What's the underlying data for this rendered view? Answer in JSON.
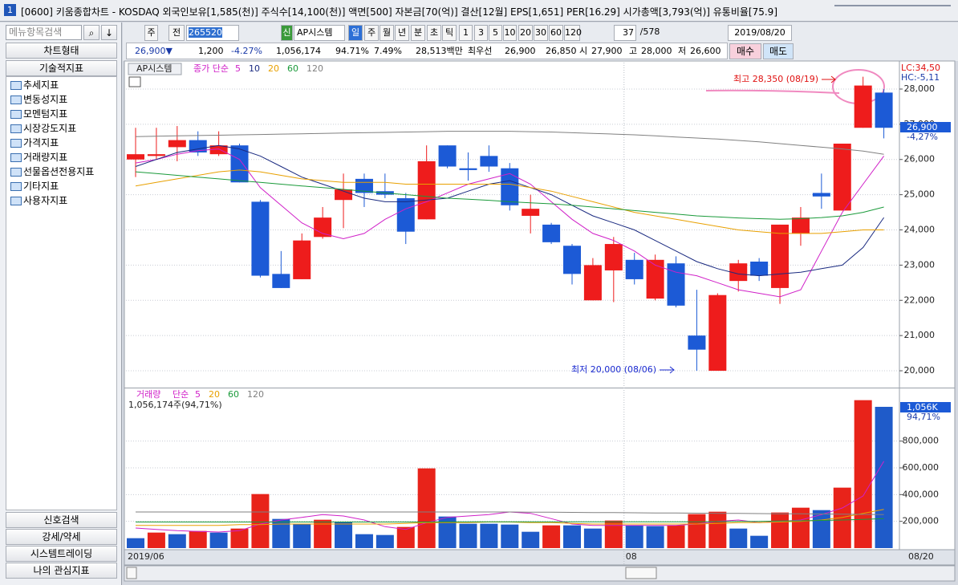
{
  "window": {
    "title": "[0600] 키움종합차트 - KOSDAQ 외국인보유[1,585(천)] 주식수[14,100(천)] 액면[500] 자본금[70(억)] 결산[12월] EPS[1,651] PER[16.29] 시가총액[3,793(억)] 유통비율[75.9]"
  },
  "sidebar": {
    "search": "메뉴항목검색",
    "tabs": [
      "차트형태",
      "기술적지표"
    ],
    "folders": [
      "추세지표",
      "변동성지표",
      "모멘텀지표",
      "시장강도지표",
      "가격지표",
      "거래량지표",
      "선물옵션전용지표",
      "기타지표",
      "사용자지표"
    ],
    "bottom": [
      "신호검색",
      "강세/약세",
      "시스템트레이딩",
      "나의 관심지표"
    ]
  },
  "toolbar": [
    "주",
    "전",
    "265520",
    "신",
    "AP시스템",
    "일",
    "주",
    "월",
    "년",
    "분",
    "초",
    "틱",
    "1",
    "3",
    "5",
    "10",
    "20",
    "30",
    "60",
    "120",
    "37",
    "/578",
    "2019/08/20"
  ],
  "infobar": [
    "26,900▼",
    "1,200",
    "-4.27%",
    "1,056,174",
    "94.71%",
    "7.49%",
    "28,513백만",
    "최우선",
    "26,900",
    "26,850",
    "시",
    "27,900",
    "고",
    "28,000",
    "저",
    "26,600",
    "매수",
    "매도"
  ],
  "chart_data": [
    {
      "type": "candlestick",
      "title": "AP시스템",
      "ma_label": "종가 단순",
      "categories": [
        "2019/06",
        null,
        null,
        null,
        null,
        null,
        null,
        null,
        null,
        null,
        null,
        null,
        null,
        null,
        null,
        null,
        null,
        null,
        null,
        null,
        null,
        null,
        null,
        null,
        "08",
        null,
        null,
        null,
        null,
        null,
        null,
        null,
        null,
        null,
        null,
        null,
        "08/20"
      ],
      "open": [
        26000,
        26100,
        26350,
        26550,
        26150,
        26400,
        24800,
        22750,
        22600,
        23800,
        24850,
        25450,
        25100,
        24900,
        24300,
        26400,
        25750,
        26100,
        25750,
        24400,
        24150,
        23550,
        22000,
        22850,
        23150,
        22050,
        23050,
        21000,
        20000,
        22550,
        23100,
        22350,
        23900,
        25050,
        24550,
        26900,
        27900
      ],
      "high": [
        26900,
        26900,
        26950,
        26800,
        26800,
        26450,
        24850,
        23400,
        23900,
        24650,
        25600,
        25600,
        25600,
        25050,
        26400,
        26400,
        26200,
        26400,
        25900,
        25000,
        24200,
        23600,
        23200,
        23800,
        23350,
        23300,
        23250,
        22300,
        22200,
        23150,
        23200,
        24150,
        24650,
        25600,
        26450,
        28350,
        28000
      ],
      "low": [
        25500,
        26000,
        25950,
        26100,
        26100,
        25350,
        22650,
        22350,
        22600,
        23750,
        24050,
        24650,
        24900,
        23600,
        24300,
        25750,
        25400,
        25650,
        24550,
        23900,
        23600,
        22450,
        22000,
        21950,
        22450,
        22000,
        21800,
        20000,
        20000,
        22250,
        22550,
        21900,
        23550,
        24600,
        24550,
        26900,
        26600
      ],
      "close": [
        26150,
        26150,
        26550,
        26200,
        26400,
        25350,
        22700,
        22350,
        23700,
        24350,
        25150,
        25050,
        25000,
        23950,
        25950,
        25800,
        25700,
        25800,
        24700,
        24600,
        23650,
        22750,
        23000,
        23600,
        22600,
        23150,
        21850,
        20600,
        22150,
        23050,
        22700,
        24150,
        24350,
        24950,
        26450,
        28100,
        26900
      ],
      "up_color": "#ee1c1c",
      "down_color": "#1c5ad6",
      "series": [
        {
          "name": "5",
          "color": "#d020c8",
          "values": [
            25900,
            26000,
            26150,
            26250,
            26300,
            26000,
            25200,
            24700,
            24200,
            23900,
            23750,
            23900,
            24300,
            24600,
            24800,
            25050,
            25300,
            25450,
            25600,
            25300,
            24800,
            24300,
            23900,
            23700,
            23400,
            23000,
            22800,
            22700,
            22500,
            22300,
            22200,
            22100,
            22300,
            23400,
            24500,
            25300,
            26100
          ]
        },
        {
          "name": "10",
          "color": "#1a2a80",
          "values": [
            25800,
            26000,
            26200,
            26300,
            26400,
            26300,
            26100,
            25800,
            25500,
            25300,
            25100,
            24900,
            24800,
            24800,
            24850,
            24900,
            25100,
            25300,
            25400,
            25200,
            25000,
            24700,
            24400,
            24200,
            24000,
            23700,
            23400,
            23100,
            22900,
            22750,
            22700,
            22750,
            22800,
            22900,
            23000,
            23500,
            24350
          ]
        },
        {
          "name": "20",
          "color": "#e8a000",
          "values": [
            25250,
            25350,
            25450,
            25550,
            25650,
            25700,
            25650,
            25550,
            25450,
            25400,
            25350,
            25350,
            25350,
            25300,
            25300,
            25300,
            25300,
            25300,
            25300,
            25200,
            25100,
            24950,
            24800,
            24650,
            24500,
            24400,
            24300,
            24200,
            24100,
            24000,
            23950,
            23900,
            23900,
            23900,
            23950,
            24000,
            24000
          ]
        },
        {
          "name": "60",
          "color": "#1a9a3a",
          "values": [
            25650,
            25600,
            25550,
            25500,
            25450,
            25400,
            25350,
            25300,
            25250,
            25200,
            25150,
            25100,
            25050,
            25000,
            24950,
            24900,
            24870,
            24840,
            24800,
            24770,
            24740,
            24700,
            24650,
            24600,
            24550,
            24500,
            24450,
            24400,
            24370,
            24340,
            24320,
            24300,
            24320,
            24350,
            24400,
            24500,
            24650
          ]
        },
        {
          "name": "120",
          "color": "#808080",
          "values": [
            26650,
            26660,
            26670,
            26680,
            26690,
            26700,
            26710,
            26720,
            26730,
            26740,
            26750,
            26760,
            26770,
            26780,
            26790,
            26800,
            26800,
            26800,
            26800,
            26790,
            26780,
            26760,
            26740,
            26720,
            26700,
            26670,
            26640,
            26610,
            26580,
            26540,
            26500,
            26450,
            26400,
            26350,
            26300,
            26240,
            26150
          ]
        }
      ],
      "ylim": [
        19545,
        28706
      ],
      "yticks": [
        {
          "value": 20000,
          "label": "20,000"
        },
        {
          "value": 21000,
          "label": "21,000"
        },
        {
          "value": 22000,
          "label": "22,000"
        },
        {
          "value": 23000,
          "label": "23,000"
        },
        {
          "value": 24000,
          "label": "24,000"
        },
        {
          "value": 25000,
          "label": "25,000"
        },
        {
          "value": 26000,
          "label": "26,000"
        },
        {
          "value": 27000,
          "label": "27,000"
        },
        {
          "value": 28000,
          "label": "28,000"
        }
      ],
      "grid": true,
      "annotations": [
        "최고 28,350 (08/19)",
        "최저 20,000 (08/06)"
      ],
      "side_labels": [
        "LC:34,50",
        "HC:-5,11",
        "26,900",
        "-4,27%"
      ]
    },
    {
      "type": "bar",
      "title": "거래량",
      "ma_label": "단순",
      "subtitle": "1,056,174주(94,71%)",
      "values": [
        74000,
        116000,
        104000,
        128000,
        116000,
        146000,
        404000,
        218000,
        182000,
        212000,
        194000,
        104000,
        98000,
        158000,
        596000,
        236000,
        182000,
        182000,
        176000,
        122000,
        170000,
        170000,
        146000,
        206000,
        170000,
        164000,
        170000,
        254000,
        272000,
        146000,
        92000,
        266000,
        302000,
        284000,
        452000,
        1106000,
        1056174
      ],
      "up_color": "#e8231a",
      "down_color": "#1f5bc9",
      "series": [
        {
          "name": "5",
          "color": "#d020c8",
          "values": [
            150000,
            140000,
            130000,
            125000,
            120000,
            130000,
            180000,
            210000,
            230000,
            250000,
            240000,
            210000,
            160000,
            140000,
            190000,
            230000,
            240000,
            250000,
            270000,
            260000,
            220000,
            180000,
            170000,
            170000,
            170000,
            170000,
            170000,
            180000,
            200000,
            210000,
            190000,
            200000,
            210000,
            250000,
            300000,
            390000,
            650000
          ]
        },
        {
          "name": "20",
          "color": "#e8a000",
          "values": [
            170000,
            170000,
            170000,
            170000,
            170000,
            175000,
            175000,
            180000,
            180000,
            180000,
            180000,
            180000,
            180000,
            185000,
            190000,
            190000,
            190000,
            195000,
            195000,
            190000,
            190000,
            185000,
            180000,
            180000,
            180000,
            180000,
            180000,
            180000,
            185000,
            190000,
            190000,
            195000,
            200000,
            210000,
            230000,
            260000,
            290000
          ]
        },
        {
          "name": "60",
          "color": "#1a9a3a",
          "values": [
            195000,
            195000,
            195000,
            195000,
            195000,
            195000,
            195000,
            195000,
            195000,
            195000,
            195000,
            195000,
            195000,
            195000,
            195000,
            196000,
            196000,
            196000,
            196000,
            196000,
            196000,
            196000,
            196000,
            196000,
            196000,
            196000,
            196000,
            197000,
            198000,
            199000,
            200000,
            202000,
            204000,
            207000,
            210000,
            215000,
            220000
          ]
        },
        {
          "name": "120",
          "color": "#808080",
          "values": [
            270000,
            270000,
            270000,
            270000,
            270000,
            270000,
            270000,
            270000,
            270000,
            270000,
            270000,
            270000,
            270000,
            270000,
            270000,
            270000,
            270000,
            270000,
            270000,
            269000,
            268000,
            267000,
            266000,
            265000,
            264000,
            263000,
            262000,
            261000,
            260000,
            259000,
            258000,
            257000,
            256000,
            255000,
            254000,
            252000,
            250000
          ]
        }
      ],
      "ylim": [
        0,
        1176000
      ],
      "yticks": [
        {
          "value": 200000,
          "label": "200,000"
        },
        {
          "value": 400000,
          "label": "400,000"
        },
        {
          "value": 600000,
          "label": "600,000"
        },
        {
          "value": 800000,
          "label": "800,000"
        }
      ],
      "grid": true,
      "side_labels": [
        "1,056K",
        "94,71%"
      ]
    }
  ]
}
